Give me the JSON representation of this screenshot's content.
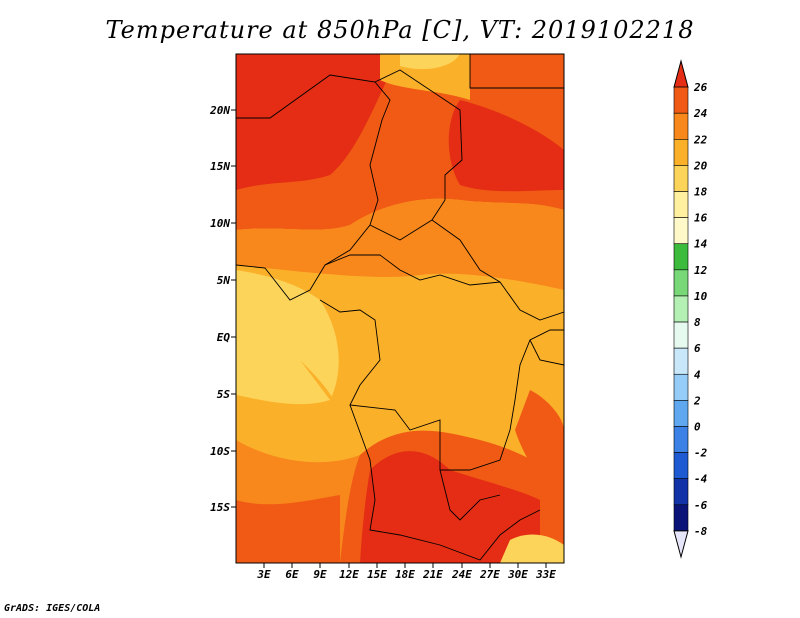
{
  "title": "Temperature at 850hPa [C], VT: 2019102218",
  "credit": "GrADS: IGES/COLA",
  "map": {
    "lat_labels": [
      "20N",
      "15N",
      "10N",
      "5N",
      "EQ",
      "5S",
      "10S",
      "15S"
    ],
    "lon_labels": [
      "3E",
      "6E",
      "9E",
      "12E",
      "15E",
      "18E",
      "21E",
      "24E",
      "27E",
      "30E",
      "33E"
    ]
  },
  "colorbar": {
    "labels": [
      "26",
      "24",
      "22",
      "20",
      "18",
      "16",
      "14",
      "12",
      "10",
      "8",
      "6",
      "4",
      "2",
      "0",
      "-2",
      "-4",
      "-6",
      "-8"
    ],
    "colors": [
      "#e42d14",
      "#f05a14",
      "#f8871c",
      "#fbb02a",
      "#fdd45a",
      "#fff0a0",
      "#fff8c8",
      "#3cbb3c",
      "#78d878",
      "#b4f0b4",
      "#e6faf0",
      "#c8e8fa",
      "#96ccf8",
      "#5fa8f0",
      "#3c82e6",
      "#1e5ad2",
      "#1232a8",
      "#0a1478",
      "#e6e6fa"
    ]
  }
}
